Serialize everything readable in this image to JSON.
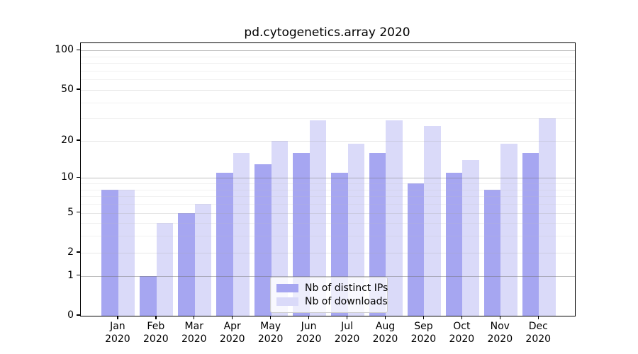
{
  "title": "pd.cytogenetics.array 2020",
  "chart_data": {
    "type": "bar",
    "title": "pd.cytogenetics.array 2020",
    "scale": "log10(1+x)",
    "grid": true,
    "legend_position": "lower center",
    "categories": [
      "Jan",
      "Feb",
      "Mar",
      "Apr",
      "May",
      "Jun",
      "Jul",
      "Aug",
      "Sep",
      "Oct",
      "Nov",
      "Dec"
    ],
    "year_label": "2020",
    "series": [
      {
        "name": "Nb of distinct IPs",
        "color": "#a6a6f1",
        "values": [
          8,
          1,
          5,
          11,
          13,
          16,
          11,
          16,
          9,
          11,
          8,
          16
        ]
      },
      {
        "name": "Nb of downloads",
        "color": "#dadaf9",
        "values": [
          8,
          4,
          6,
          16,
          20,
          29,
          19,
          29,
          26,
          14,
          19,
          30
        ]
      }
    ],
    "xlabel": "",
    "ylabel": "",
    "ylim": [
      0,
      114
    ],
    "y_major_ticks": [
      0,
      1,
      2,
      5,
      10,
      20,
      50,
      100
    ],
    "y_decade_lines": [
      1,
      10,
      100
    ],
    "y_minor_lines": [
      3,
      4,
      6,
      7,
      8,
      9,
      30,
      40,
      60,
      70,
      80,
      90
    ]
  },
  "legend": {
    "items": [
      {
        "label": "Nb of distinct IPs",
        "color": "#a6a6f1"
      },
      {
        "label": "Nb of downloads",
        "color": "#dadaf9"
      }
    ]
  }
}
